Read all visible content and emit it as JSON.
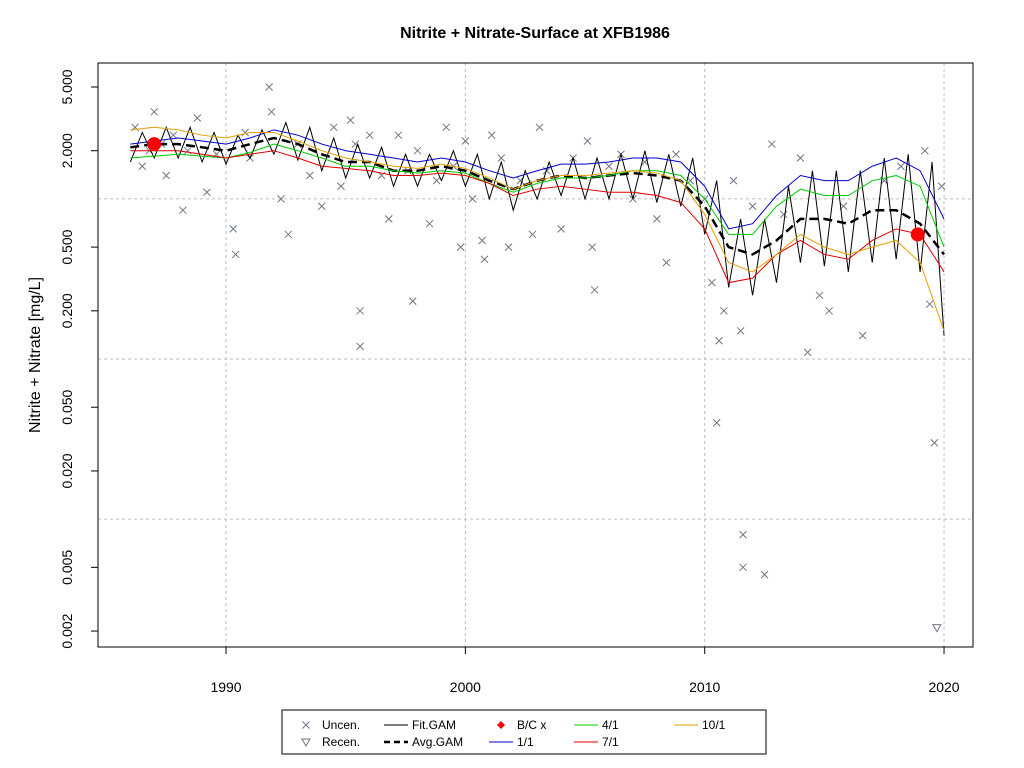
{
  "chart_data": {
    "type": "line",
    "title": "Nitrite + Nitrate-Surface at XFB1986",
    "y_label": "Nitrite + Nitrate [mg/L]",
    "log_y": true,
    "xlim": [
      1984.65,
      2021.21
    ],
    "ylim": [
      0.00159,
      7.06
    ],
    "xticks": [
      1990,
      2000,
      2010,
      2020
    ],
    "yticks": [
      {
        "value": 0.002,
        "label": "0.002"
      },
      {
        "value": 0.005,
        "label": "0.005"
      },
      {
        "value": 0.02,
        "label": "0.020"
      },
      {
        "value": 0.05,
        "label": "0.050"
      },
      {
        "value": 0.2,
        "label": "0.200"
      },
      {
        "value": 0.5,
        "label": "0.500"
      },
      {
        "value": 2,
        "label": "2.000"
      },
      {
        "value": 5,
        "label": "5.000"
      }
    ],
    "ygrid": [
      0.01,
      0.1,
      1
    ],
    "grid": true,
    "legend": "bottom",
    "x": [
      1986,
      1987,
      1988,
      1989,
      1990,
      1991,
      1992,
      1993,
      1994,
      1995,
      1996,
      1997,
      1998,
      1999,
      2000,
      2001,
      2002,
      2003,
      2004,
      2005,
      2006,
      2007,
      2008,
      2009,
      2010,
      2011,
      2012,
      2013,
      2014,
      2015,
      2016,
      2017,
      2018,
      2019,
      2020
    ],
    "series": [
      {
        "name": "Uncen.",
        "color": "#6e7787",
        "mark": "cross",
        "x": [
          1986.2,
          1986.5,
          1986.8,
          1987.0,
          1987.3,
          1987.5,
          1987.8,
          1988.2,
          1988.4,
          1988.8,
          1989.2,
          1989.6,
          1990.3,
          1990.4,
          1990.8,
          1991.0,
          1991.8,
          1991.9,
          1992.3,
          1992.6,
          1993.0,
          1993.5,
          1994.0,
          1994.5,
          1994.8,
          1995.2,
          1995.4,
          1995.6,
          1995.6,
          1996.0,
          1996.5,
          1996.8,
          1997.2,
          1997.6,
          1997.8,
          1998.0,
          1998.5,
          1998.8,
          1999.2,
          1999.5,
          1999.8,
          2000.0,
          2000.3,
          2000.7,
          2000.8,
          2001.1,
          2001.5,
          2001.8,
          2002.3,
          2002.8,
          2003.1,
          2003.4,
          2004.0,
          2004.5,
          2005.1,
          2005.3,
          2005.4,
          2006.0,
          2006.5,
          2007.0,
          2007.5,
          2008.0,
          2008.4,
          2008.8,
          2009.4,
          2010.0,
          2010.3,
          2010.5,
          2010.6,
          2010.8,
          2011.2,
          2011.5,
          2011.6,
          2011.6,
          2012.0,
          2012.5,
          2012.8,
          2013.3,
          2014.0,
          2014.3,
          2014.8,
          2015.2,
          2015.8,
          2016.6,
          2017.5,
          2018.2,
          2018.8,
          2019.2,
          2019.4,
          2019.6,
          2019.9
        ],
        "values": [
          2.8,
          1.6,
          2.0,
          3.5,
          2.2,
          1.4,
          2.5,
          0.85,
          2.0,
          3.2,
          1.1,
          1.9,
          0.65,
          0.45,
          2.6,
          1.8,
          5.0,
          3.5,
          1.0,
          0.6,
          2.2,
          1.4,
          0.9,
          2.8,
          1.2,
          3.1,
          2.2,
          0.2,
          0.12,
          2.5,
          1.4,
          0.75,
          2.5,
          1.5,
          0.23,
          2.0,
          0.7,
          1.3,
          2.8,
          1.6,
          0.5,
          2.3,
          1.0,
          0.55,
          0.42,
          2.5,
          1.8,
          0.5,
          1.3,
          0.6,
          2.8,
          1.5,
          0.65,
          1.8,
          2.3,
          0.5,
          0.27,
          1.6,
          1.9,
          1.0,
          1.7,
          0.75,
          0.4,
          1.9,
          1.3,
          1.0,
          0.3,
          0.04,
          0.13,
          0.2,
          1.3,
          0.15,
          0.008,
          0.005,
          0.9,
          0.0045,
          2.2,
          0.8,
          1.8,
          0.11,
          0.25,
          0.2,
          0.9,
          0.14,
          1.3,
          1.6,
          0.6,
          2.0,
          0.22,
          0.03,
          1.2
        ]
      },
      {
        "name": "Recen.",
        "color": "#6e7787",
        "mark": "triangle",
        "x": [
          2019.7
        ],
        "values": [
          0.0021
        ]
      },
      {
        "name": "Fit.GAM",
        "color": "#000000",
        "mark": "line",
        "x": [
          1986,
          1986.5,
          1987,
          1987.5,
          1988,
          1988.5,
          1989,
          1989.5,
          1990,
          1990.5,
          1991,
          1991.5,
          1992,
          1992.5,
          1993,
          1993.5,
          1994,
          1994.5,
          1995,
          1995.5,
          1996,
          1996.5,
          1997,
          1997.5,
          1998,
          1998.5,
          1999,
          1999.5,
          2000,
          2000.5,
          2001,
          2001.5,
          2002,
          2002.5,
          2003,
          2003.5,
          2004,
          2004.5,
          2005,
          2005.5,
          2006,
          2006.5,
          2007,
          2007.5,
          2008,
          2008.5,
          2009,
          2009.5,
          2010,
          2010.5,
          2011,
          2011.5,
          2012,
          2012.5,
          2013,
          2013.5,
          2014,
          2014.5,
          2015,
          2015.5,
          2016,
          2016.5,
          2017,
          2017.5,
          2018,
          2018.5,
          2019,
          2019.5,
          2020
        ],
        "values": [
          1.7,
          2.6,
          1.8,
          2.8,
          1.8,
          2.8,
          1.7,
          2.6,
          1.65,
          2.5,
          1.8,
          2.7,
          1.9,
          3.0,
          1.75,
          2.8,
          1.5,
          2.4,
          1.35,
          2.2,
          1.35,
          2.1,
          1.2,
          1.9,
          1.2,
          1.9,
          1.3,
          2.0,
          1.2,
          1.9,
          1.0,
          1.7,
          0.85,
          1.5,
          1.0,
          1.7,
          1.05,
          1.8,
          1.0,
          1.8,
          1.0,
          1.9,
          1.0,
          2.0,
          0.95,
          1.9,
          0.9,
          1.8,
          0.6,
          1.3,
          0.28,
          0.75,
          0.25,
          0.75,
          0.3,
          1.2,
          0.4,
          1.5,
          0.38,
          1.5,
          0.35,
          1.5,
          0.4,
          1.8,
          0.42,
          1.9,
          0.35,
          1.7,
          0.14
        ]
      },
      {
        "name": "Avg.GAM",
        "color": "#000000",
        "mark": "dashed",
        "values": [
          2.1,
          2.2,
          2.2,
          2.1,
          2.0,
          2.2,
          2.4,
          2.2,
          1.9,
          1.7,
          1.7,
          1.5,
          1.5,
          1.6,
          1.5,
          1.3,
          1.15,
          1.3,
          1.4,
          1.35,
          1.4,
          1.45,
          1.4,
          1.3,
          0.9,
          0.5,
          0.45,
          0.55,
          0.75,
          0.75,
          0.7,
          0.85,
          0.85,
          0.7,
          0.45
        ]
      },
      {
        "name": "B/C x",
        "color": "#ff0000",
        "mark": "dot",
        "x": [
          1987.0,
          2018.9
        ],
        "values": [
          2.2,
          0.6
        ]
      },
      {
        "name": "1/1",
        "color": "#0000cc",
        "mark": "line",
        "values": [
          2.2,
          2.3,
          2.4,
          2.3,
          2.2,
          2.4,
          2.7,
          2.5,
          2.2,
          2.0,
          1.9,
          1.8,
          1.7,
          1.8,
          1.7,
          1.5,
          1.35,
          1.5,
          1.65,
          1.65,
          1.7,
          1.8,
          1.8,
          1.7,
          1.2,
          0.65,
          0.7,
          1.05,
          1.4,
          1.3,
          1.3,
          1.6,
          1.8,
          1.5,
          0.75
        ]
      },
      {
        "name": "4/1",
        "color": "#00cc00",
        "mark": "line",
        "values": [
          1.8,
          1.85,
          1.9,
          1.85,
          1.8,
          1.95,
          2.2,
          2.0,
          1.8,
          1.6,
          1.6,
          1.5,
          1.45,
          1.5,
          1.45,
          1.25,
          1.1,
          1.25,
          1.35,
          1.35,
          1.4,
          1.5,
          1.5,
          1.4,
          1.0,
          0.6,
          0.6,
          0.9,
          1.15,
          1.05,
          1.05,
          1.3,
          1.4,
          1.2,
          0.5
        ]
      },
      {
        "name": "7/1",
        "color": "#dd0000",
        "mark": "line",
        "values": [
          2.0,
          2.0,
          2.0,
          1.9,
          1.8,
          1.9,
          2.0,
          1.8,
          1.6,
          1.55,
          1.5,
          1.4,
          1.4,
          1.45,
          1.4,
          1.25,
          1.05,
          1.15,
          1.2,
          1.15,
          1.1,
          1.1,
          1.05,
          0.95,
          0.65,
          0.3,
          0.32,
          0.45,
          0.55,
          0.45,
          0.42,
          0.55,
          0.65,
          0.6,
          0.35
        ]
      },
      {
        "name": "10/1",
        "color": "#e69f00",
        "mark": "line",
        "values": [
          2.7,
          2.8,
          2.7,
          2.5,
          2.4,
          2.6,
          2.6,
          2.3,
          2.0,
          1.8,
          1.7,
          1.6,
          1.55,
          1.65,
          1.55,
          1.35,
          1.15,
          1.3,
          1.4,
          1.4,
          1.45,
          1.5,
          1.45,
          1.3,
          0.8,
          0.4,
          0.35,
          0.45,
          0.6,
          0.5,
          0.45,
          0.5,
          0.55,
          0.4,
          0.15
        ]
      }
    ]
  }
}
